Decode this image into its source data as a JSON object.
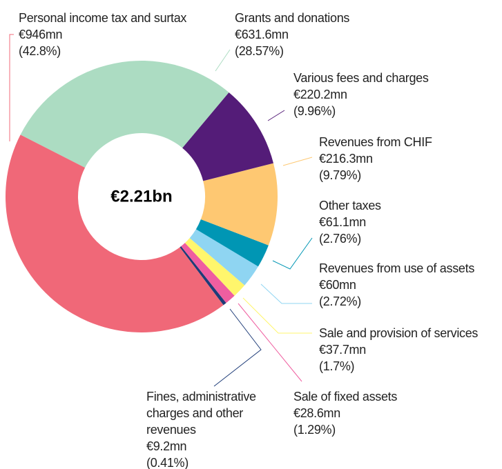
{
  "chart_data": {
    "type": "donut",
    "center_label": "€2.21bn",
    "categories": [
      "Personal income tax and surtax",
      "Grants and donations",
      "Various fees and charges",
      "Revenues from CHIF",
      "Other taxes",
      "Revenues from use of assets",
      "Sale and provision of services",
      "Sale of fixed assets",
      "Fines, administrative charges and other revenues"
    ],
    "values": [
      42.8,
      28.57,
      9.96,
      9.79,
      2.76,
      2.72,
      1.7,
      1.29,
      0.41
    ],
    "value_labels": [
      "(42.8%)",
      "(28.57%)",
      "(9.96%)",
      "(9.79%)",
      "(2.76%)",
      "(2.72%)",
      "(1.7%)",
      "(1.29%)",
      "(0.41%)"
    ],
    "amounts": [
      946,
      631.6,
      220.2,
      216.3,
      61.1,
      60,
      37.7,
      28.6,
      9.2
    ],
    "amount_labels": [
      "€946mn",
      "€631.6mn",
      "€220.2mn",
      "€216.3mn",
      "€61.1mn",
      "€60mn",
      "€37.7mn",
      "€28.6mn",
      "€9.2mn"
    ],
    "colors": [
      "#f06878",
      "#acdcc2",
      "#541c78",
      "#fec872",
      "#0096b4",
      "#8fd5f2",
      "#fff66c",
      "#ef5ea0",
      "#1e3c78"
    ]
  }
}
